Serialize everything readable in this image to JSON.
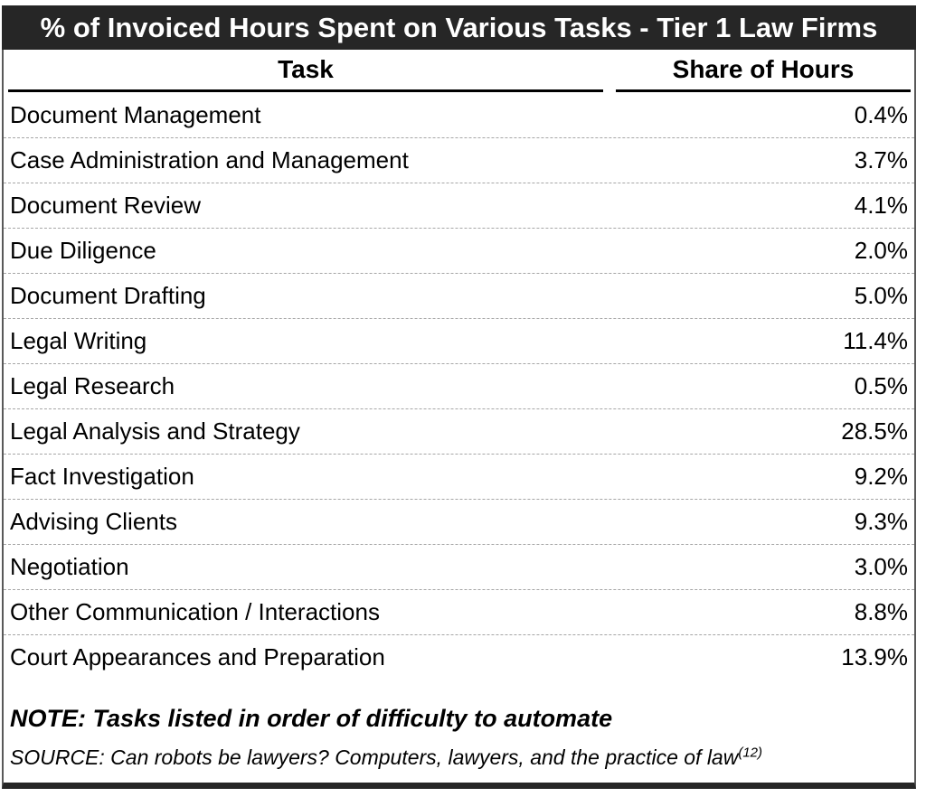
{
  "title": "% of Invoiced Hours Spent on Various Tasks - Tier 1 Law Firms",
  "columns": {
    "task": "Task",
    "share": "Share of Hours"
  },
  "rows": [
    {
      "task": "Document Management",
      "share": "0.4%"
    },
    {
      "task": "Case Administration and Management",
      "share": "3.7%"
    },
    {
      "task": "Document Review",
      "share": "4.1%"
    },
    {
      "task": "Due Diligence",
      "share": "2.0%"
    },
    {
      "task": "Document Drafting",
      "share": "5.0%"
    },
    {
      "task": "Legal Writing",
      "share": "11.4%"
    },
    {
      "task": "Legal Research",
      "share": "0.5%"
    },
    {
      "task": "Legal Analysis and Strategy",
      "share": "28.5%"
    },
    {
      "task": "Fact Investigation",
      "share": "9.2%"
    },
    {
      "task": "Advising Clients",
      "share": "9.3%"
    },
    {
      "task": "Negotiation",
      "share": "3.0%"
    },
    {
      "task": "Other Communication / Interactions",
      "share": "8.8%"
    },
    {
      "task": "Court Appearances and Preparation",
      "share": "13.9%"
    }
  ],
  "note": "NOTE: Tasks listed in order of difficulty to automate",
  "source": {
    "text": "SOURCE: Can robots be lawyers? Computers, lawyers, and the practice of law",
    "superscript": "(12)"
  },
  "colors": {
    "title_bar_bg": "#262626",
    "title_text": "#ffffff",
    "body_text": "#000000",
    "row_divider": "#a6a6a6",
    "side_border": "#595959",
    "bottom_border": "#262626",
    "header_underline": "#000000"
  },
  "chart_data": {
    "type": "table",
    "title": "% of Invoiced Hours Spent on Various Tasks - Tier 1 Law Firms",
    "columns": [
      "Task",
      "Share of Hours"
    ],
    "categories": [
      "Document Management",
      "Case Administration and Management",
      "Document Review",
      "Due Diligence",
      "Document Drafting",
      "Legal Writing",
      "Legal Research",
      "Legal Analysis and Strategy",
      "Fact Investigation",
      "Advising Clients",
      "Negotiation",
      "Other Communication / Interactions",
      "Court Appearances and Preparation"
    ],
    "values": [
      0.4,
      3.7,
      4.1,
      2.0,
      5.0,
      11.4,
      0.5,
      28.5,
      9.2,
      9.3,
      3.0,
      8.8,
      13.9
    ],
    "unit": "%",
    "note": "NOTE: Tasks listed in order of difficulty to automate",
    "source": "SOURCE: Can robots be lawyers? Computers, lawyers, and the practice of law (12)"
  }
}
